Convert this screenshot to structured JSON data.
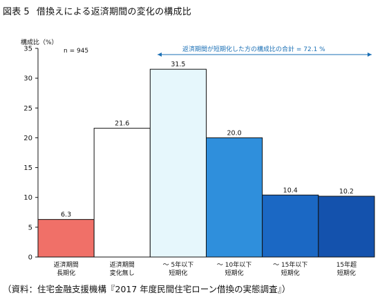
{
  "figure": {
    "title_prefix": "図表",
    "title_number": "5",
    "title": "借換えによる返済期間の変化の構成比",
    "source": "（資料：住宅金融支援機構『2017 年度民間住宅ローン借換の実態調査』）"
  },
  "chart_data": {
    "type": "bar",
    "ylabel": "構成比（%）",
    "ylim": [
      0,
      35
    ],
    "yticks": [
      0,
      5,
      10,
      15,
      20,
      25,
      30,
      35
    ],
    "grid": false,
    "legend": "none",
    "note": "n = 945",
    "annotation": "返済期間が短期化した方の構成比の合計 = 72.1 %",
    "categories": [
      [
        "返済期間",
        "長期化"
      ],
      [
        "返済期間",
        "変化無し"
      ],
      [
        "～ 5年以下",
        "短期化"
      ],
      [
        "～ 10年以下",
        "短期化"
      ],
      [
        "～ 15年以下",
        "短期化"
      ],
      [
        "15年超",
        "短期化"
      ]
    ],
    "values": [
      6.3,
      21.6,
      31.5,
      20.0,
      10.4,
      10.2
    ],
    "value_labels": [
      "6.3",
      "21.6",
      "31.5",
      "20.0",
      "10.4",
      "10.2"
    ],
    "colors": [
      "#f07068",
      "#ffffff",
      "#e6f7fc",
      "#2f8fdc",
      "#1b68c4",
      "#1452ad"
    ],
    "annotation_color": "#1a6fb5"
  }
}
